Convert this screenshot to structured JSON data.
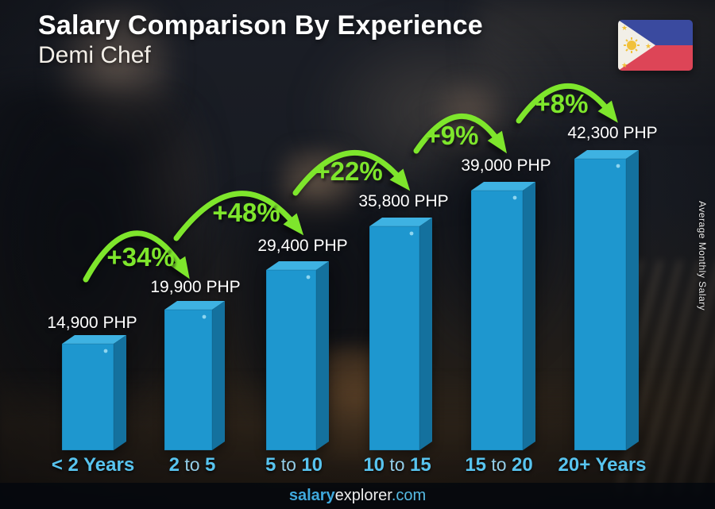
{
  "header": {
    "title": "Salary Comparison By Experience",
    "subtitle": "Demi Chef",
    "flag_country": "Philippines"
  },
  "footer": {
    "site_bold": "salary",
    "site_regular": "explorer",
    "site_suffix": ".com"
  },
  "colors": {
    "bar_front": "#1e97cf",
    "bar_top": "#3eb2e2",
    "bar_side": "#14719e",
    "bar_highlight_dot": "#9adcf2",
    "pct_green": "#7ee62c",
    "label_cyan": "#58c4ef",
    "label_cyan_light": "#9bd9f5",
    "footer_cyan_bold": "#3fa9dd",
    "footer_cyan": "#56bbe4",
    "flag_blue": "#3a4a9f",
    "flag_red": "#dd4557",
    "flag_yellow": "#f1c13a",
    "flag_white": "#f2efe7"
  },
  "chart_data": {
    "type": "bar",
    "title": "Salary Comparison By Experience",
    "subtitle": "Demi Chef",
    "currency": "PHP",
    "categories": [
      "< 2 Years",
      "2 to 5",
      "5 to 10",
      "10 to 15",
      "15 to 20",
      "20+ Years"
    ],
    "category_parts": [
      [
        {
          "text": "< 2 Years",
          "bold": true
        }
      ],
      [
        {
          "text": "2",
          "bold": true
        },
        {
          "text": " to ",
          "bold": false
        },
        {
          "text": "5",
          "bold": true
        }
      ],
      [
        {
          "text": "5",
          "bold": true
        },
        {
          "text": " to ",
          "bold": false
        },
        {
          "text": "10",
          "bold": true
        }
      ],
      [
        {
          "text": "10",
          "bold": true
        },
        {
          "text": " to ",
          "bold": false
        },
        {
          "text": "15",
          "bold": true
        }
      ],
      [
        {
          "text": "15",
          "bold": true
        },
        {
          "text": " to ",
          "bold": false
        },
        {
          "text": "20",
          "bold": true
        }
      ],
      [
        {
          "text": "20+ Years",
          "bold": true
        }
      ]
    ],
    "values": [
      14900,
      19900,
      29400,
      35800,
      39000,
      42300
    ],
    "value_labels": [
      "14,900 PHP",
      "19,900 PHP",
      "29,400 PHP",
      "35,800 PHP",
      "39,000 PHP",
      "42,300 PHP"
    ],
    "pct_changes": [
      "+34%",
      "+48%",
      "+22%",
      "+9%",
      "+8%"
    ],
    "xlabel": "",
    "ylabel": "Average Monthly Salary",
    "ylim": [
      0,
      45000
    ],
    "grid": false,
    "legend": false
  }
}
